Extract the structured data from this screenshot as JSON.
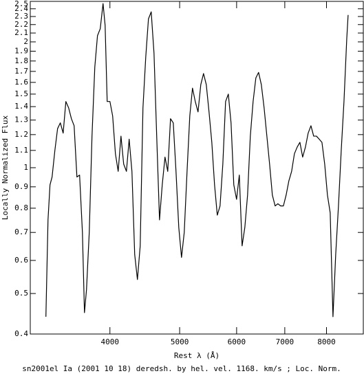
{
  "chart_data": {
    "type": "line",
    "x_label": "Rest λ (Å)",
    "y_label": "Locally Normalized Flux",
    "caption": "sn2001el Ia (2001 10 18) deredsh. by hel. vel.  1168. km/s ;  Loc. Norm.",
    "x_scale": "log",
    "y_scale": "log",
    "grid": false,
    "xlim": [
      3100,
      9000
    ],
    "ylim": [
      0.4,
      2.5
    ],
    "xticks": [
      4000,
      5000,
      6000,
      7000,
      8000
    ],
    "yticks": [
      0.4,
      0.5,
      0.6,
      0.7,
      0.8,
      0.9,
      1,
      1.1,
      1.2,
      1.3,
      1.4,
      1.5,
      1.6,
      1.7,
      1.8,
      1.9,
      2,
      2.1,
      2.2,
      2.3,
      2.4,
      2.5
    ],
    "color": "#000000",
    "x": [
      3259,
      3281,
      3302,
      3324,
      3354,
      3383,
      3413,
      3444,
      3474,
      3505,
      3536,
      3567,
      3599,
      3630,
      3663,
      3687,
      3711,
      3744,
      3777,
      3811,
      3844,
      3878,
      3913,
      3939,
      3965,
      4000,
      4035,
      4071,
      4107,
      4144,
      4180,
      4217,
      4254,
      4292,
      4330,
      4368,
      4407,
      4446,
      4486,
      4525,
      4565,
      4606,
      4646,
      4688,
      4729,
      4771,
      4813,
      4856,
      4899,
      4942,
      4986,
      5030,
      5074,
      5120,
      5165,
      5210,
      5256,
      5303,
      5350,
      5397,
      5445,
      5493,
      5542,
      5591,
      5640,
      5690,
      5741,
      5792,
      5843,
      5894,
      5946,
      5999,
      6052,
      6106,
      6160,
      6214,
      6269,
      6325,
      6381,
      6437,
      6494,
      6552,
      6610,
      6668,
      6727,
      6787,
      6847,
      6908,
      6969,
      7030,
      7092,
      7155,
      7219,
      7283,
      7347,
      7412,
      7478,
      7544,
      7611,
      7678,
      7746,
      7815,
      7884,
      7954,
      8024,
      8095,
      8167,
      8239,
      8312,
      8386,
      8460,
      8535,
      8573
    ],
    "values": [
      0.44,
      0.75,
      0.91,
      0.95,
      1.1,
      1.24,
      1.28,
      1.21,
      1.44,
      1.39,
      1.31,
      1.26,
      0.95,
      0.96,
      0.7,
      0.45,
      0.51,
      0.7,
      1.19,
      1.74,
      2.07,
      2.15,
      2.47,
      2.19,
      1.44,
      1.44,
      1.33,
      1.08,
      0.98,
      1.19,
      1.02,
      0.98,
      1.17,
      0.98,
      0.62,
      0.54,
      0.65,
      1.39,
      1.84,
      2.27,
      2.36,
      1.88,
      1.19,
      0.75,
      0.91,
      1.06,
      0.98,
      1.31,
      1.28,
      0.98,
      0.72,
      0.61,
      0.7,
      0.98,
      1.33,
      1.55,
      1.44,
      1.36,
      1.58,
      1.68,
      1.58,
      1.36,
      1.15,
      0.91,
      0.77,
      0.81,
      1.02,
      1.44,
      1.5,
      1.28,
      0.91,
      0.84,
      0.96,
      0.65,
      0.72,
      0.86,
      1.19,
      1.44,
      1.64,
      1.69,
      1.58,
      1.39,
      1.19,
      1.02,
      0.86,
      0.81,
      0.82,
      0.81,
      0.81,
      0.86,
      0.93,
      0.98,
      1.08,
      1.12,
      1.15,
      1.06,
      1.12,
      1.21,
      1.26,
      1.19,
      1.19,
      1.17,
      1.15,
      1.02,
      0.86,
      0.78,
      0.44,
      0.62,
      0.81,
      1.1,
      1.44,
      2.03,
      2.32
    ]
  }
}
